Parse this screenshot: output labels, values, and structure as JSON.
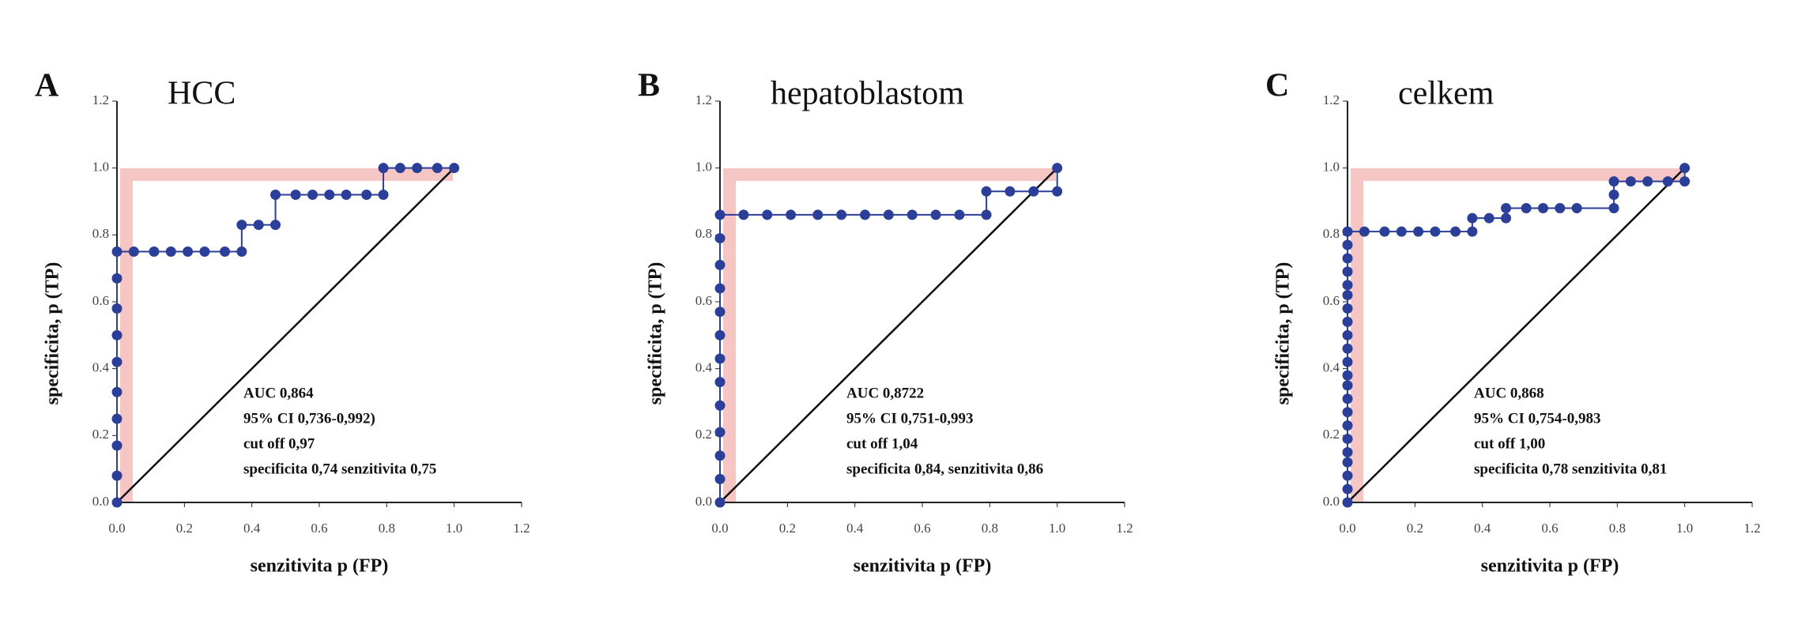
{
  "chart_data": [
    {
      "type": "line",
      "panel": "A",
      "title": "HCC",
      "xlabel": "senzitivita p (FP)",
      "ylabel": "specificita, p (TP)",
      "annotation": [
        "AUC 0,864",
        "95% CI 0,736-0,992)",
        "cut off 0,97",
        "specificita 0,74 senzitivita 0,75"
      ],
      "xlim": [
        0,
        1.2
      ],
      "ylim": [
        0,
        1.2
      ],
      "xticks": [
        {
          "value": 0,
          "label": "0.0"
        },
        {
          "value": 0.2,
          "label": "0.2"
        },
        {
          "value": 0.4,
          "label": "0.4"
        },
        {
          "value": 0.6,
          "label": "0.6"
        },
        {
          "value": 0.8,
          "label": "0.8"
        },
        {
          "value": 1,
          "label": "1.0"
        },
        {
          "value": 1.2,
          "label": "1.2"
        }
      ],
      "yticks": [
        {
          "value": 0,
          "label": "0.0"
        },
        {
          "value": 0.2,
          "label": "0.2"
        },
        {
          "value": 0.4,
          "label": "0.4"
        },
        {
          "value": 0.6,
          "label": "0.6"
        },
        {
          "value": 0.8,
          "label": "0.8"
        },
        {
          "value": 1,
          "label": "1.0"
        },
        {
          "value": 1.2,
          "label": "1.2"
        }
      ],
      "series": [
        {
          "color": "#2b3f98",
          "x": [
            0,
            0,
            0,
            0,
            0,
            0,
            0,
            0,
            0,
            0,
            0.05,
            0.11,
            0.16,
            0.21,
            0.26,
            0.32,
            0.37,
            0.37,
            0.42,
            0.47,
            0.47,
            0.53,
            0.58,
            0.63,
            0.68,
            0.74,
            0.79,
            0.79,
            0.84,
            0.89,
            0.95,
            1.0
          ],
          "values": [
            0,
            0.08,
            0.17,
            0.25,
            0.33,
            0.42,
            0.5,
            0.58,
            0.67,
            0.75,
            0.75,
            0.75,
            0.75,
            0.75,
            0.75,
            0.75,
            0.75,
            0.83,
            0.83,
            0.83,
            0.92,
            0.92,
            0.92,
            0.92,
            0.92,
            0.92,
            0.92,
            1.0,
            1.0,
            1.0,
            1.0,
            1.0
          ]
        }
      ]
    },
    {
      "type": "line",
      "panel": "B",
      "title": "hepatoblastom",
      "xlabel": "senzitivita p (FP)",
      "ylabel": "specificita, p (TP)",
      "annotation": [
        "AUC 0,8722",
        "95% CI  0,751-0,993",
        "cut off 1,04",
        "specificita 0,84, senzitivita 0,86"
      ],
      "xlim": [
        0,
        1.2
      ],
      "ylim": [
        0,
        1.2
      ],
      "xticks": [
        {
          "value": 0,
          "label": "0.0"
        },
        {
          "value": 0.2,
          "label": "0.2"
        },
        {
          "value": 0.4,
          "label": "0.4"
        },
        {
          "value": 0.6,
          "label": "0.6"
        },
        {
          "value": 0.8,
          "label": "0.8"
        },
        {
          "value": 1,
          "label": "1.0"
        },
        {
          "value": 1.2,
          "label": "1.2"
        }
      ],
      "yticks": [
        {
          "value": 0,
          "label": "0.0"
        },
        {
          "value": 0.2,
          "label": "0.2"
        },
        {
          "value": 0.4,
          "label": "0.4"
        },
        {
          "value": 0.6,
          "label": "0.6"
        },
        {
          "value": 0.8,
          "label": "0.8"
        },
        {
          "value": 1,
          "label": "1.0"
        },
        {
          "value": 1.2,
          "label": "1.2"
        }
      ],
      "series": [
        {
          "color": "#2b3f98",
          "x": [
            0,
            0,
            0,
            0,
            0,
            0,
            0,
            0,
            0,
            0,
            0,
            0,
            0,
            0.07,
            0.14,
            0.21,
            0.29,
            0.36,
            0.43,
            0.5,
            0.57,
            0.64,
            0.71,
            0.79,
            0.79,
            0.86,
            0.93,
            1.0,
            1.0
          ],
          "values": [
            0,
            0.07,
            0.14,
            0.21,
            0.29,
            0.36,
            0.43,
            0.5,
            0.57,
            0.64,
            0.71,
            0.79,
            0.86,
            0.86,
            0.86,
            0.86,
            0.86,
            0.86,
            0.86,
            0.86,
            0.86,
            0.86,
            0.86,
            0.86,
            0.93,
            0.93,
            0.93,
            0.93,
            1.0
          ]
        }
      ]
    },
    {
      "type": "line",
      "panel": "C",
      "title": "celkem",
      "xlabel": "senzitivita p (FP)",
      "ylabel": "specificita, p (TP)",
      "annotation": [
        "AUC 0,868",
        "95% CI 0,754-0,983",
        "cut off 1,00",
        "specificita 0,78 senzitivita 0,81"
      ],
      "xlim": [
        0,
        1.2
      ],
      "ylim": [
        0,
        1.2
      ],
      "xticks": [
        {
          "value": 0,
          "label": "0.0"
        },
        {
          "value": 0.2,
          "label": "0.2"
        },
        {
          "value": 0.4,
          "label": "0.4"
        },
        {
          "value": 0.6,
          "label": "0.6"
        },
        {
          "value": 0.8,
          "label": "0.8"
        },
        {
          "value": 1,
          "label": "1.0"
        },
        {
          "value": 1.2,
          "label": "1.2"
        }
      ],
      "yticks": [
        {
          "value": 0,
          "label": "0.0"
        },
        {
          "value": 0.2,
          "label": "0.2"
        },
        {
          "value": 0.4,
          "label": "0.4"
        },
        {
          "value": 0.6,
          "label": "0.6"
        },
        {
          "value": 0.8,
          "label": "0.8"
        },
        {
          "value": 1,
          "label": "1.0"
        },
        {
          "value": 1.2,
          "label": "1.2"
        }
      ],
      "series": [
        {
          "color": "#2b3f98",
          "x": [
            0,
            0,
            0,
            0,
            0,
            0,
            0,
            0,
            0,
            0,
            0,
            0,
            0,
            0,
            0,
            0,
            0,
            0,
            0,
            0,
            0,
            0,
            0.05,
            0.11,
            0.16,
            0.21,
            0.26,
            0.32,
            0.37,
            0.37,
            0.42,
            0.47,
            0.47,
            0.53,
            0.58,
            0.63,
            0.68,
            0.79,
            0.79,
            0.79,
            0.84,
            0.89,
            0.95,
            1.0,
            1.0
          ],
          "values": [
            0,
            0.04,
            0.08,
            0.12,
            0.15,
            0.19,
            0.23,
            0.27,
            0.31,
            0.35,
            0.38,
            0.42,
            0.46,
            0.5,
            0.54,
            0.58,
            0.62,
            0.65,
            0.69,
            0.73,
            0.77,
            0.81,
            0.81,
            0.81,
            0.81,
            0.81,
            0.81,
            0.81,
            0.81,
            0.85,
            0.85,
            0.85,
            0.88,
            0.88,
            0.88,
            0.88,
            0.88,
            0.88,
            0.92,
            0.96,
            0.96,
            0.96,
            0.96,
            0.96,
            1.0
          ]
        }
      ]
    }
  ]
}
